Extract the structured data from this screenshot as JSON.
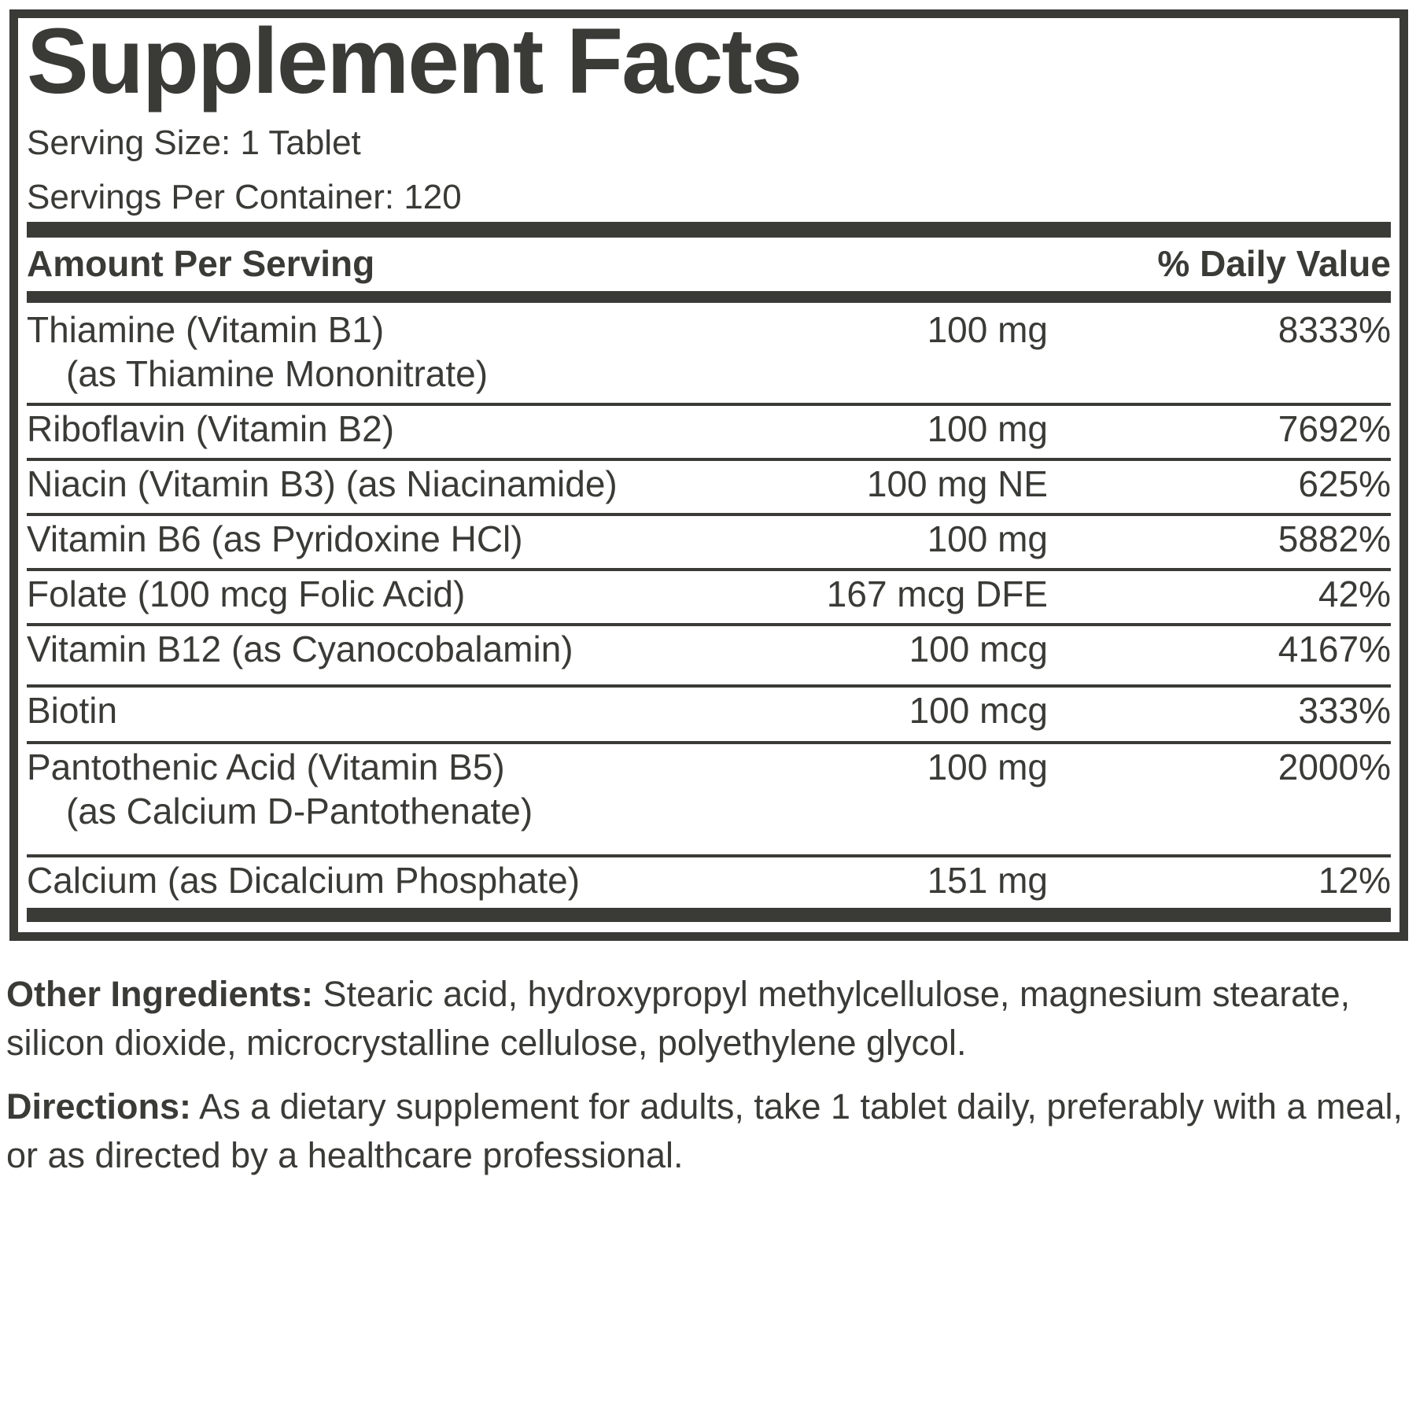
{
  "panel": {
    "title": "Supplement Facts",
    "serving_size": "Serving Size: 1 Tablet",
    "servings_per_container": "Servings Per Container: 120",
    "header_left": "Amount Per Serving",
    "header_right": "% Daily Value",
    "rows": [
      {
        "name": "Thiamine (Vitamin B1)",
        "sub": "(as Thiamine Mononitrate)",
        "amount": "100 mg",
        "dv": "8333%"
      },
      {
        "name": "Riboflavin (Vitamin B2)",
        "amount": "100 mg",
        "dv": "7692%"
      },
      {
        "name": "Niacin (Vitamin B3) (as Niacinamide)",
        "amount": "100 mg NE",
        "dv": "625%"
      },
      {
        "name": "Vitamin B6 (as Pyridoxine HCl)",
        "amount": "100 mg",
        "dv": "5882%"
      },
      {
        "name": "Folate (100 mcg Folic Acid)",
        "amount": "167 mcg DFE",
        "dv": "42%"
      },
      {
        "name": "Vitamin B12 (as Cyanocobalamin)",
        "amount": "100 mcg",
        "dv": "4167%"
      },
      {
        "name": "Biotin",
        "amount": "100 mcg",
        "dv": "333%"
      },
      {
        "name": "Pantothenic Acid (Vitamin B5)",
        "sub": "(as Calcium D-Pantothenate)",
        "amount": "100 mg",
        "dv": "2000%"
      },
      {
        "name": "Calcium (as Dicalcium Phosphate)",
        "amount": "151 mg",
        "dv": "12%"
      }
    ]
  },
  "other_ingredients": {
    "label": "Other Ingredients:",
    "text": " Stearic acid, hydroxypropyl methylcellulose, magnesium stearate, silicon dioxide, microcrystalline cellulose, polyethylene glycol."
  },
  "directions": {
    "label": "Directions:",
    "text": " As a dietary supplement for adults, take 1 tablet daily, preferably with a meal, or as directed by a healthcare professional."
  },
  "colors": {
    "ink": "#3a3a37",
    "background": "#ffffff"
  }
}
